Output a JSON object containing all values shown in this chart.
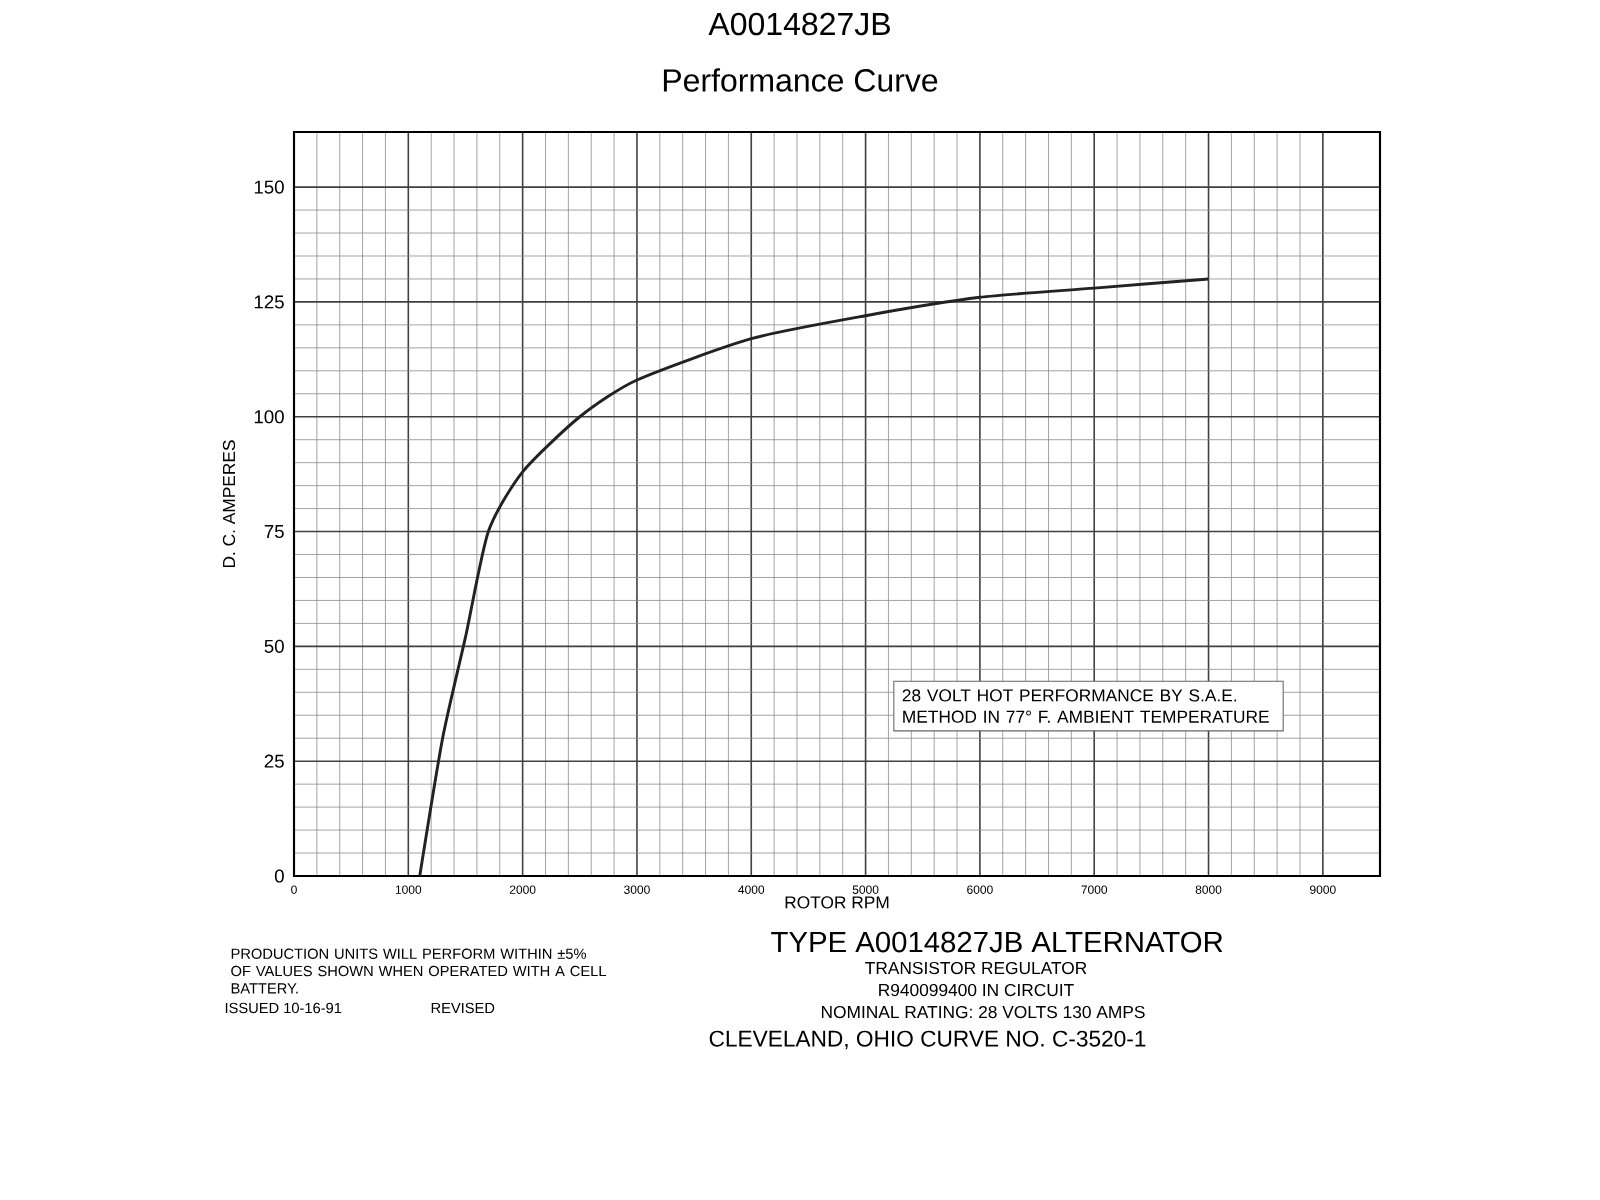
{
  "chart_data": {
    "type": "line",
    "title": "A0014827JB",
    "subtitle": "Performance Curve",
    "xlabel": "ROTOR RPM",
    "ylabel": "D. C. AMPERES",
    "x": [
      1100,
      1300,
      1500,
      1700,
      2000,
      2500,
      3000,
      4000,
      5000,
      6000,
      7000,
      8000
    ],
    "series": [
      {
        "color": "#222222",
        "values": [
          0,
          30,
          52,
          75,
          88,
          100,
          108,
          117,
          122,
          126,
          128,
          130
        ]
      }
    ],
    "xlim": [
      0,
      9500
    ],
    "xticks": [
      0,
      1000,
      2000,
      3000,
      4000,
      5000,
      6000,
      7000,
      8000,
      9000
    ],
    "ylim": [
      0,
      162
    ],
    "yticks": [
      0,
      25,
      50,
      75,
      100,
      125,
      150
    ],
    "grid": true,
    "marker": "none",
    "line_style": "solid",
    "annotations": [
      "28 VOLT HOT PERFORMANCE BY S.A.E. METHOD IN 77° F. AMBIENT TEMPERATURE",
      "PRODUCTION UNITS WILL PERFORM WITHIN ±5% OF VALUES SHOWN WHEN OPERATED WITH A CELL BATTERY.",
      "ISSUED 10-16-91",
      "REVISED",
      "TYPE A0014827JB ALTERNATOR",
      "TRANSISTOR REGULATOR",
      "R940099400 IN CIRCUIT",
      "NOMINAL RATING: 28 VOLTS 130 AMPS",
      "CLEVELAND, OHIO CURVE NO. C-3520-1"
    ]
  }
}
